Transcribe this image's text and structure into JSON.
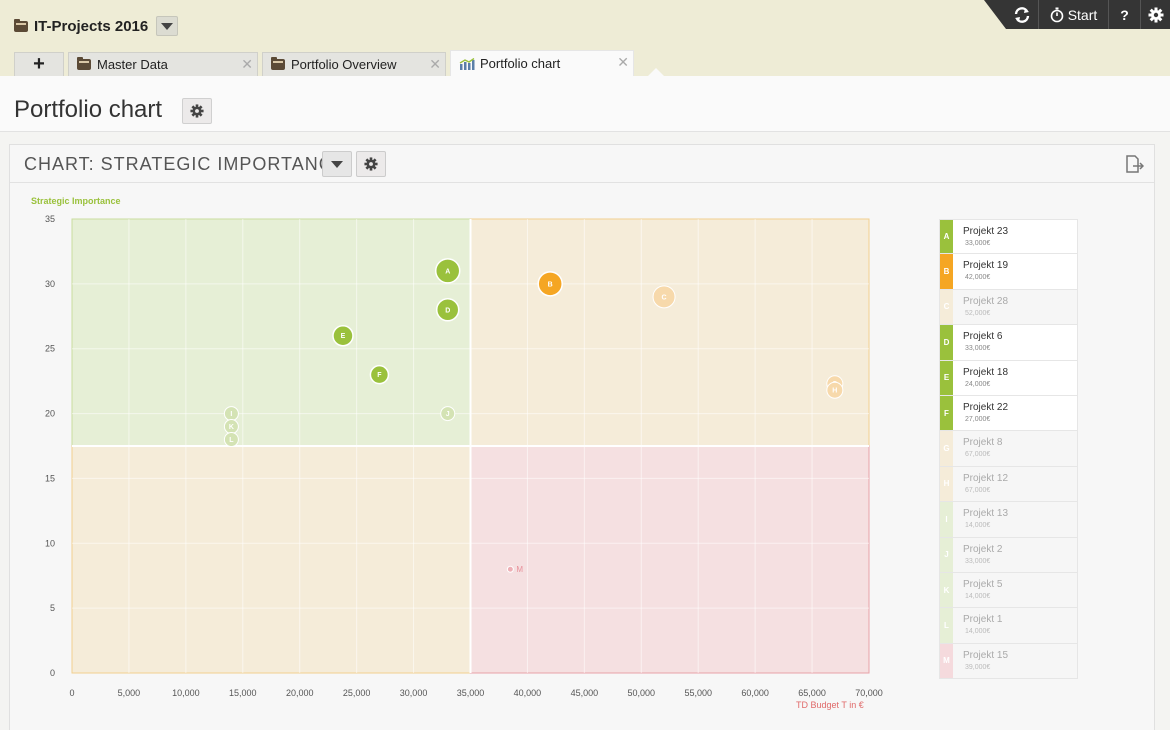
{
  "app": {
    "title": "IT-Projects 2016"
  },
  "toolbar": {
    "start_label": "Start",
    "help_label": "?"
  },
  "tabs": [
    {
      "label": "Master Data"
    },
    {
      "label": "Portfolio Overview"
    },
    {
      "label": "Portfolio chart"
    }
  ],
  "page": {
    "title": "Portfolio chart"
  },
  "panel": {
    "title": "CHART: STRATEGIC IMPORTANCE"
  },
  "colors": {
    "green": "#9ac13c",
    "orange": "#f5a623",
    "red": "#e8808a",
    "quadrant_green": "#e6efd6",
    "quadrant_orange": "#f5ecd9",
    "quadrant_red": "#f5e0e1"
  },
  "chart_data": {
    "type": "scatter",
    "ylabel": "Strategic Importance",
    "xlabel": "TD Budget T in €",
    "xlim": [
      0,
      70000
    ],
    "ylim": [
      0,
      35
    ],
    "x_ticks": [
      "0",
      "5,000",
      "10,000",
      "15,000",
      "20,000",
      "25,000",
      "30,000",
      "35,000",
      "40,000",
      "45,000",
      "50,000",
      "55,000",
      "60,000",
      "65,000",
      "70,000"
    ],
    "y_ticks": [
      "0",
      "5",
      "10",
      "15",
      "20",
      "25",
      "30",
      "35"
    ],
    "quadrant_split": {
      "x": 35000,
      "y": 17.5
    },
    "points": [
      {
        "id": "A",
        "x": 33000,
        "y": 31,
        "size": 12,
        "color": "green",
        "faded": false
      },
      {
        "id": "B",
        "x": 42000,
        "y": 30,
        "size": 12,
        "color": "orange",
        "faded": false
      },
      {
        "id": "C",
        "x": 52000,
        "y": 29,
        "size": 11,
        "color": "orange",
        "faded": true
      },
      {
        "id": "D",
        "x": 33000,
        "y": 28,
        "size": 11,
        "color": "green",
        "faded": false
      },
      {
        "id": "E",
        "x": 23800,
        "y": 26,
        "size": 10,
        "color": "green",
        "faded": false
      },
      {
        "id": "F",
        "x": 27000,
        "y": 23,
        "size": 9,
        "color": "green",
        "faded": false
      },
      {
        "id": "G",
        "x": 67000,
        "y": 22.3,
        "size": 8,
        "color": "orange",
        "faded": true
      },
      {
        "id": "H",
        "x": 67000,
        "y": 21.8,
        "size": 8,
        "color": "orange",
        "faded": true
      },
      {
        "id": "I",
        "x": 14000,
        "y": 20,
        "size": 7,
        "color": "green",
        "faded": true
      },
      {
        "id": "J",
        "x": 33000,
        "y": 20,
        "size": 7,
        "color": "green",
        "faded": true
      },
      {
        "id": "K",
        "x": 14000,
        "y": 19,
        "size": 7,
        "color": "green",
        "faded": true
      },
      {
        "id": "L",
        "x": 14000,
        "y": 18,
        "size": 7,
        "color": "green",
        "faded": true
      },
      {
        "id": "M",
        "x": 38500,
        "y": 8,
        "size": 3,
        "color": "red",
        "faded": true
      }
    ],
    "legend": [
      {
        "letter": "A",
        "name": "Projekt 23",
        "value": "33,000€",
        "color": "green",
        "faded": false
      },
      {
        "letter": "B",
        "name": "Projekt 19",
        "value": "42,000€",
        "color": "orange",
        "faded": false
      },
      {
        "letter": "C",
        "name": "Projekt 28",
        "value": "52,000€",
        "color": "orange",
        "faded": true
      },
      {
        "letter": "D",
        "name": "Projekt 6",
        "value": "33,000€",
        "color": "green",
        "faded": false
      },
      {
        "letter": "E",
        "name": "Projekt 18",
        "value": "24,000€",
        "color": "green",
        "faded": false
      },
      {
        "letter": "F",
        "name": "Projekt 22",
        "value": "27,000€",
        "color": "green",
        "faded": false
      },
      {
        "letter": "G",
        "name": "Projekt 8",
        "value": "67,000€",
        "color": "orange",
        "faded": true
      },
      {
        "letter": "H",
        "name": "Projekt 12",
        "value": "67,000€",
        "color": "orange",
        "faded": true
      },
      {
        "letter": "I",
        "name": "Projekt 13",
        "value": "14,000€",
        "color": "green",
        "faded": true
      },
      {
        "letter": "J",
        "name": "Projekt 2",
        "value": "33,000€",
        "color": "green",
        "faded": true
      },
      {
        "letter": "K",
        "name": "Projekt 5",
        "value": "14,000€",
        "color": "green",
        "faded": true
      },
      {
        "letter": "L",
        "name": "Projekt 1",
        "value": "14,000€",
        "color": "green",
        "faded": true
      },
      {
        "letter": "M",
        "name": "Projekt 15",
        "value": "39,000€",
        "color": "red",
        "faded": true
      }
    ]
  }
}
